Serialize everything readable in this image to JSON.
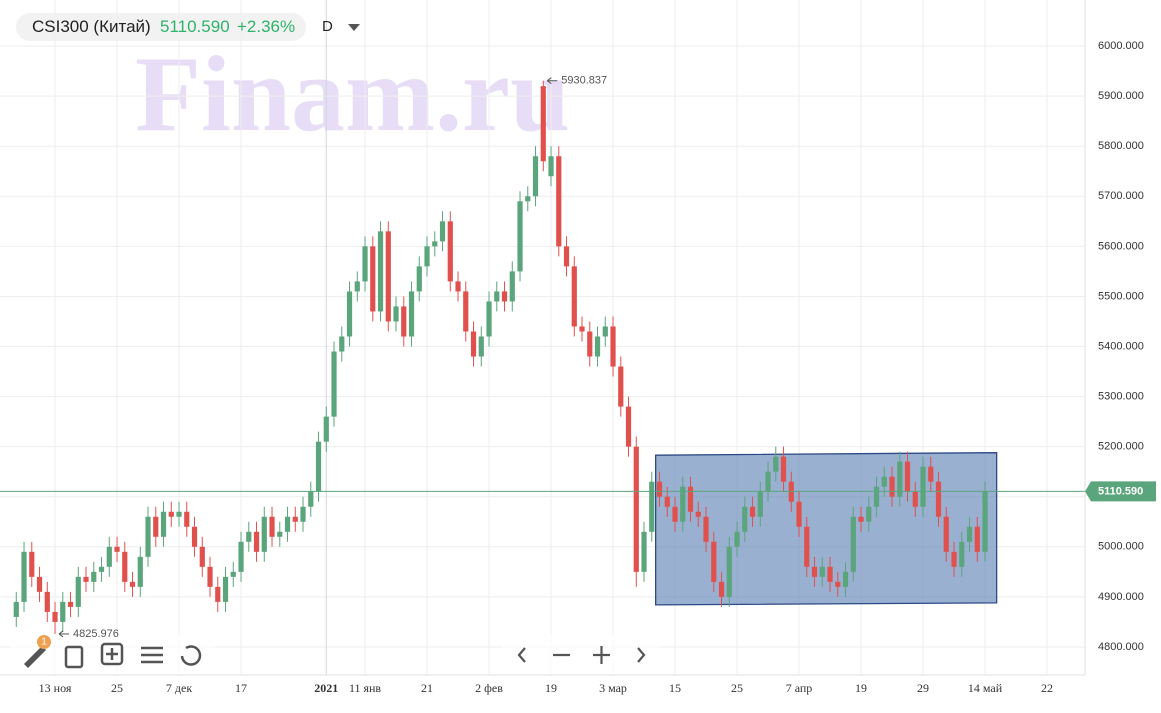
{
  "header": {
    "symbol": "CSI300 (Китай)",
    "price": "5110.590",
    "change": "+2.36%",
    "interval": "D"
  },
  "toolbar": {
    "badge": "1"
  },
  "watermark": "Finam.ru",
  "chart_data": {
    "type": "candlestick",
    "categories": [
      null,
      null,
      null,
      null,
      null,
      "13 ноя",
      null,
      null,
      null,
      null,
      null,
      null,
      null,
      "25",
      null,
      null,
      null,
      null,
      null,
      null,
      null,
      "7 дек",
      null,
      null,
      null,
      null,
      null,
      null,
      null,
      "17",
      null,
      null,
      null,
      null,
      null,
      null,
      null,
      null,
      null,
      null,
      "2021",
      null,
      null,
      null,
      null,
      "11 янв",
      null,
      null,
      null,
      null,
      null,
      null,
      null,
      "21",
      null,
      null,
      null,
      null,
      null,
      null,
      null,
      "2 фев",
      null,
      null,
      null,
      null,
      null,
      null,
      null,
      "19",
      null,
      null,
      null,
      null,
      null,
      null,
      null,
      "3 мар",
      null,
      null,
      null,
      null,
      null,
      null,
      null,
      "15",
      null,
      null,
      null,
      null,
      null,
      null,
      null,
      "25",
      null,
      null,
      null,
      null,
      null,
      null,
      null,
      "7 апр",
      null,
      null,
      null,
      null,
      null,
      null,
      null,
      "19",
      null,
      null,
      null,
      null,
      null,
      null,
      null,
      "29",
      null,
      null,
      null,
      null,
      null,
      null,
      null,
      "14 май",
      null,
      null,
      null,
      null,
      null,
      null,
      null,
      "22"
    ],
    "open": [
      4860,
      4890,
      4990,
      4940,
      4910,
      4870,
      4850,
      4890,
      4880,
      4940,
      4930,
      4950,
      4960,
      5000,
      4990,
      4930,
      4920,
      4980,
      5060,
      5020,
      5070,
      5060,
      5070,
      5040,
      5000,
      4960,
      4920,
      4890,
      4940,
      4950,
      5010,
      5030,
      4990,
      5060,
      5020,
      5030,
      5060,
      5050,
      5080,
      5110,
      5210,
      5260,
      5390,
      5420,
      5510,
      5530,
      5600,
      5470,
      5630,
      5450,
      5480,
      5420,
      5510,
      5560,
      5600,
      5610,
      5650,
      5530,
      5510,
      5430,
      5380,
      5420,
      5490,
      5510,
      5490,
      5550,
      5690,
      5700,
      5920,
      5740,
      5780,
      5600,
      5560,
      5440,
      5430,
      5380,
      5420,
      5440,
      5360,
      5280,
      5200,
      4950,
      5030,
      5130,
      5100,
      5080,
      5050,
      5120,
      5070,
      5060,
      5010,
      4930,
      4900,
      5000,
      5030,
      5080,
      5060,
      5110,
      5150,
      5180,
      5130,
      5090,
      5040,
      4960,
      4940,
      4960,
      4930,
      4920,
      4950,
      5060,
      5050,
      5080,
      5120,
      5140,
      5100,
      5170,
      5110,
      5080,
      5160,
      5130,
      5060,
      4990,
      4960,
      5010,
      5040,
      4990,
      null,
      null,
      null,
      null,
      null,
      null,
      null,
      null
    ],
    "high": [
      4910,
      5010,
      5010,
      4960,
      4930,
      4890,
      4910,
      4910,
      4960,
      4960,
      4970,
      4980,
      5020,
      5020,
      5010,
      4950,
      5000,
      5080,
      5080,
      5090,
      5090,
      5090,
      5090,
      5060,
      5020,
      4980,
      4940,
      4960,
      4970,
      5030,
      5050,
      5050,
      5080,
      5080,
      5050,
      5080,
      5080,
      5100,
      5130,
      5230,
      5280,
      5410,
      5440,
      5530,
      5550,
      5620,
      5620,
      5650,
      5650,
      5500,
      5500,
      5530,
      5580,
      5620,
      5630,
      5670,
      5670,
      5550,
      5530,
      5450,
      5440,
      5510,
      5530,
      5530,
      5570,
      5710,
      5720,
      5800,
      5930.837,
      5800,
      5800,
      5620,
      5580,
      5460,
      5450,
      5440,
      5460,
      5460,
      5380,
      5300,
      5220,
      5050,
      5150,
      5150,
      5120,
      5100,
      5140,
      5140,
      5090,
      5080,
      5030,
      4950,
      5020,
      5050,
      5100,
      5100,
      5130,
      5170,
      5200,
      5200,
      5150,
      5110,
      5060,
      4980,
      4980,
      4980,
      4950,
      4970,
      5080,
      5080,
      5100,
      5140,
      5160,
      5160,
      5190,
      5190,
      5130,
      5180,
      5180,
      5150,
      5080,
      5010,
      5030,
      5060,
      5060,
      5130,
      null,
      null,
      null,
      null,
      null,
      null,
      null,
      null
    ],
    "low": [
      4840,
      4870,
      4920,
      4890,
      4850,
      4825.976,
      4830,
      4860,
      4860,
      4910,
      4910,
      4930,
      4940,
      4970,
      4910,
      4900,
      4900,
      4960,
      5000,
      5000,
      5040,
      5040,
      5020,
      4980,
      4940,
      4900,
      4870,
      4870,
      4920,
      4930,
      4990,
      4970,
      4970,
      5000,
      5000,
      5010,
      5030,
      5030,
      5060,
      5090,
      5190,
      5240,
      5370,
      5400,
      5490,
      5510,
      5450,
      5450,
      5430,
      5430,
      5400,
      5400,
      5490,
      5540,
      5580,
      5590,
      5510,
      5490,
      5410,
      5360,
      5360,
      5400,
      5470,
      5470,
      5470,
      5530,
      5670,
      5680,
      5750,
      5720,
      5580,
      5540,
      5420,
      5410,
      5360,
      5360,
      5400,
      5340,
      5260,
      5180,
      4920,
      4930,
      5010,
      5080,
      5060,
      5030,
      5030,
      5050,
      5040,
      4990,
      4910,
      4880,
      4880,
      4980,
      5010,
      5040,
      5040,
      5090,
      5130,
      5110,
      5070,
      5020,
      4940,
      4920,
      4920,
      4910,
      4900,
      4900,
      4930,
      5030,
      5030,
      5060,
      5100,
      5080,
      5080,
      5090,
      5060,
      5060,
      5110,
      5040,
      4970,
      4940,
      4940,
      4990,
      4970,
      4970,
      null,
      null,
      null,
      null,
      null,
      null,
      null,
      null
    ],
    "close": [
      4890,
      4990,
      4940,
      4910,
      4870,
      4850,
      4890,
      4880,
      4940,
      4930,
      4950,
      4960,
      5000,
      4990,
      4930,
      4920,
      4980,
      5060,
      5020,
      5070,
      5060,
      5070,
      5040,
      5000,
      4960,
      4920,
      4890,
      4940,
      4950,
      5010,
      5030,
      4990,
      5060,
      5020,
      5030,
      5060,
      5050,
      5080,
      5110,
      5210,
      5260,
      5390,
      5420,
      5510,
      5530,
      5600,
      5470,
      5630,
      5450,
      5480,
      5420,
      5510,
      5560,
      5600,
      5610,
      5650,
      5530,
      5510,
      5430,
      5380,
      5420,
      5490,
      5510,
      5490,
      5550,
      5690,
      5700,
      5780,
      5770,
      5780,
      5600,
      5560,
      5440,
      5430,
      5380,
      5420,
      5440,
      5360,
      5280,
      5200,
      4950,
      5030,
      5130,
      5100,
      5080,
      5050,
      5120,
      5070,
      5060,
      5010,
      4930,
      4900,
      5000,
      5030,
      5080,
      5060,
      5110,
      5150,
      5180,
      5130,
      5090,
      5040,
      4960,
      4940,
      4960,
      4930,
      4920,
      4950,
      5060,
      5050,
      5080,
      5120,
      5140,
      5100,
      5170,
      5110,
      5080,
      5160,
      5130,
      5060,
      4990,
      4960,
      5010,
      5040,
      4990,
      5110.59,
      null,
      null,
      null,
      null,
      null,
      null,
      null,
      null
    ],
    "up_color": "#5ba57c",
    "down_color": "#e0514e",
    "ylim": [
      4744,
      6092
    ],
    "yticks": [
      {
        "value": 4800,
        "label": "4800.000"
      },
      {
        "value": 4900,
        "label": "4900.000"
      },
      {
        "value": 5000,
        "label": "5000.000"
      },
      {
        "value": 5100,
        "label": "5100.000"
      },
      {
        "value": 5200,
        "label": "5200.000"
      },
      {
        "value": 5300,
        "label": "5300.000"
      },
      {
        "value": 5400,
        "label": "5400.000"
      },
      {
        "value": 5500,
        "label": "5500.000"
      },
      {
        "value": 5600,
        "label": "5600.000"
      },
      {
        "value": 5700,
        "label": "5700.000"
      },
      {
        "value": 5800,
        "label": "5800.000"
      },
      {
        "value": 5900,
        "label": "5900.000"
      },
      {
        "value": 6000,
        "label": "6000.000"
      }
    ],
    "grid": true,
    "last_price": {
      "value": 5110.59,
      "label": "5110.590",
      "color": "#5ba57c"
    },
    "annotations": [
      {
        "index": 68,
        "value": 5930.837,
        "label": "5930.837"
      },
      {
        "index": 5,
        "value": 4825.976,
        "label": "4825.976"
      }
    ],
    "channel": {
      "from": 83,
      "to": 127,
      "top": [
        5183,
        5188
      ],
      "bottom": [
        4884,
        4888
      ],
      "color": "#5b7fb5"
    }
  }
}
